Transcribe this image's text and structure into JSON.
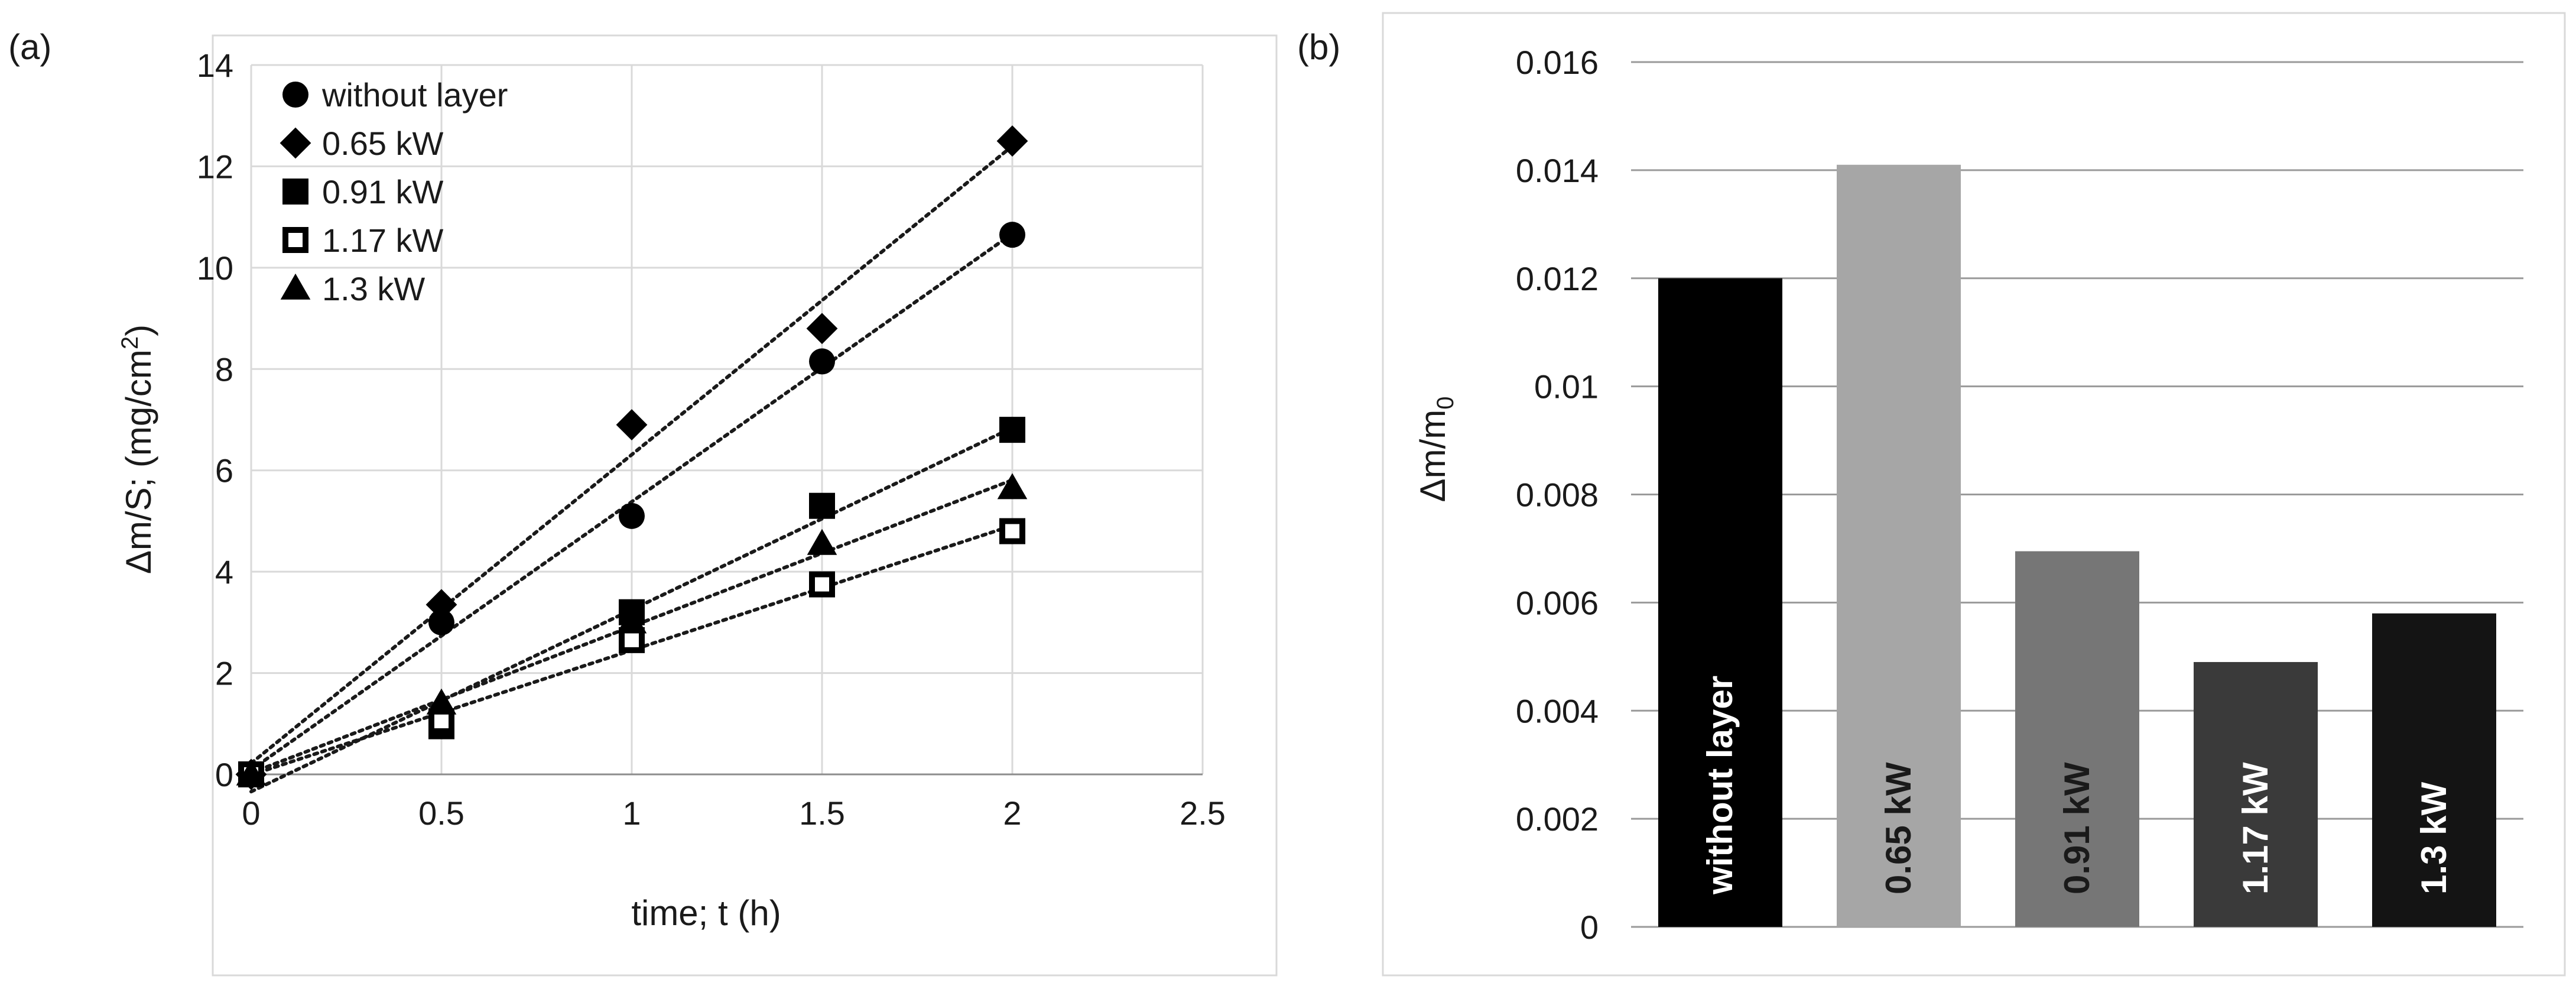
{
  "chart_data": [
    {
      "panel": "(a)",
      "type": "scatter",
      "xlabel": "time; t (h)",
      "ylabel_main": "Δm/S; (mg/cm",
      "ylabel_sup": "2",
      "ylabel_end": ")",
      "xlim": [
        0,
        2.5
      ],
      "ylim": [
        0,
        14
      ],
      "xticks": [
        0,
        0.5,
        1,
        1.5,
        2,
        2.5
      ],
      "xtick_labels": [
        "0",
        "0.5",
        "1",
        "1.5",
        "2",
        "2.5"
      ],
      "yticks": [
        0,
        2,
        4,
        6,
        8,
        10,
        12,
        14
      ],
      "ytick_labels": [
        "0",
        "2",
        "4",
        "6",
        "8",
        "10",
        "12",
        "14"
      ],
      "grid": true,
      "legend_position": "top-left",
      "trendlines": "linear, dotted",
      "x": [
        0,
        0.5,
        1,
        1.5,
        2
      ],
      "series": [
        {
          "name": "without layer",
          "marker": "circle",
          "values": [
            0,
            3.0,
            5.1,
            8.15,
            10.65
          ]
        },
        {
          "name": "0.65 kW",
          "marker": "diamond",
          "values": [
            0,
            3.35,
            6.9,
            8.8,
            12.5
          ]
        },
        {
          "name": "0.91 kW",
          "marker": "square",
          "values": [
            0,
            0.95,
            3.2,
            5.3,
            6.8
          ]
        },
        {
          "name": "1.17 kW",
          "marker": "open-square",
          "values": [
            0,
            1.05,
            2.65,
            3.75,
            4.8
          ]
        },
        {
          "name": "1.3 kW",
          "marker": "triangle",
          "values": [
            0,
            1.4,
            3.0,
            4.55,
            5.65
          ]
        }
      ]
    },
    {
      "panel": "(b)",
      "type": "bar",
      "ylabel_main": "Δm/m",
      "ylabel_sub": "0",
      "ylim": [
        0,
        0.016
      ],
      "yticks": [
        0,
        0.002,
        0.004,
        0.006,
        0.008,
        0.01,
        0.012,
        0.014,
        0.016
      ],
      "ytick_labels": [
        "0",
        "0.002",
        "0.004",
        "0.006",
        "0.008",
        "0.01",
        "0.012",
        "0.014",
        "0.016"
      ],
      "grid": true,
      "categories": [
        "without layer",
        "0.65 kW",
        "0.91 kW",
        "1.17 kW",
        "1.3 kW"
      ],
      "values": [
        0.012,
        0.0141,
        0.00695,
        0.0049,
        0.0058
      ],
      "bar_colors": [
        "#000000",
        "#a6a6a6",
        "#767676",
        "#3a3a3a",
        "#141414"
      ],
      "label_colors": [
        "#ffffff",
        "#1a1a1a",
        "#1a1a1a",
        "#ffffff",
        "#ffffff"
      ]
    }
  ]
}
